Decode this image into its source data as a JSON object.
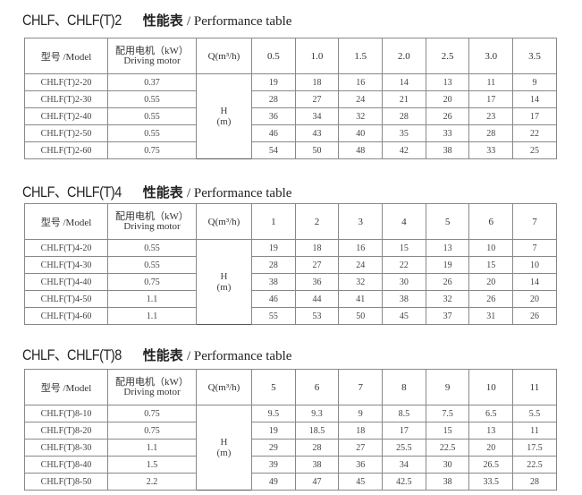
{
  "tables": [
    {
      "title_code": "CHLF、CHLF(T)2",
      "title_cn": "性能表",
      "title_en": "/ Performance table",
      "header": {
        "model": "型号 /Model",
        "motor_cn": "配用电机（kW）",
        "motor_en": "Driving motor",
        "q": "Q(m³/h)"
      },
      "flows": [
        "0.5",
        "1.0",
        "1.5",
        "2.0",
        "2.5",
        "3.0",
        "3.5"
      ],
      "head_label": "H",
      "head_unit": "(m)",
      "rows": [
        {
          "model": "CHLF(T)2-20",
          "motor": "0.37",
          "values": [
            "19",
            "18",
            "16",
            "14",
            "13",
            "11",
            "9"
          ]
        },
        {
          "model": "CHLF(T)2-30",
          "motor": "0.55",
          "values": [
            "28",
            "27",
            "24",
            "21",
            "20",
            "17",
            "14"
          ]
        },
        {
          "model": "CHLF(T)2-40",
          "motor": "0.55",
          "values": [
            "36",
            "34",
            "32",
            "28",
            "26",
            "23",
            "17"
          ]
        },
        {
          "model": "CHLF(T)2-50",
          "motor": "0.55",
          "values": [
            "46",
            "43",
            "40",
            "35",
            "33",
            "28",
            "22"
          ]
        },
        {
          "model": "CHLF(T)2-60",
          "motor": "0.75",
          "values": [
            "54",
            "50",
            "48",
            "42",
            "38",
            "33",
            "25"
          ]
        }
      ]
    },
    {
      "title_code": "CHLF、CHLF(T)4",
      "title_cn": "性能表",
      "title_en": "/ Performance table",
      "header": {
        "model": "型号 /Model",
        "motor_cn": "配用电机（kW）",
        "motor_en": "Driving motor",
        "q": "Q(m³/h)"
      },
      "flows": [
        "1",
        "2",
        "3",
        "4",
        "5",
        "6",
        "7"
      ],
      "head_label": "H",
      "head_unit": "(m)",
      "rows": [
        {
          "model": "CHLF(T)4-20",
          "motor": "0.55",
          "values": [
            "19",
            "18",
            "16",
            "15",
            "13",
            "10",
            "7"
          ]
        },
        {
          "model": "CHLF(T)4-30",
          "motor": "0.55",
          "values": [
            "28",
            "27",
            "24",
            "22",
            "19",
            "15",
            "10"
          ]
        },
        {
          "model": "CHLF(T)4-40",
          "motor": "0.75",
          "values": [
            "38",
            "36",
            "32",
            "30",
            "26",
            "20",
            "14"
          ]
        },
        {
          "model": "CHLF(T)4-50",
          "motor": "1.1",
          "values": [
            "46",
            "44",
            "41",
            "38",
            "32",
            "26",
            "20"
          ]
        },
        {
          "model": "CHLF(T)4-60",
          "motor": "1.1",
          "values": [
            "55",
            "53",
            "50",
            "45",
            "37",
            "31",
            "26"
          ]
        }
      ]
    },
    {
      "title_code": "CHLF、CHLF(T)8",
      "title_cn": "性能表",
      "title_en": "/ Performance table",
      "header": {
        "model": "型号 /Model",
        "motor_cn": "配用电机（kW）",
        "motor_en": "Driving motor",
        "q": "Q(m³/h)"
      },
      "flows": [
        "5",
        "6",
        "7",
        "8",
        "9",
        "10",
        "11"
      ],
      "head_label": "H",
      "head_unit": "(m)",
      "rows": [
        {
          "model": "CHLF(T)8-10",
          "motor": "0.75",
          "values": [
            "9.5",
            "9.3",
            "9",
            "8.5",
            "7.5",
            "6.5",
            "5.5"
          ]
        },
        {
          "model": "CHLF(T)8-20",
          "motor": "0.75",
          "values": [
            "19",
            "18.5",
            "18",
            "17",
            "15",
            "13",
            "11"
          ]
        },
        {
          "model": "CHLF(T)8-30",
          "motor": "1.1",
          "values": [
            "29",
            "28",
            "27",
            "25.5",
            "22.5",
            "20",
            "17.5"
          ]
        },
        {
          "model": "CHLF(T)8-40",
          "motor": "1.5",
          "values": [
            "39",
            "38",
            "36",
            "34",
            "30",
            "26.5",
            "22.5"
          ]
        },
        {
          "model": "CHLF(T)8-50",
          "motor": "2.2",
          "values": [
            "49",
            "47",
            "45",
            "42.5",
            "38",
            "33.5",
            "28"
          ]
        }
      ]
    }
  ]
}
